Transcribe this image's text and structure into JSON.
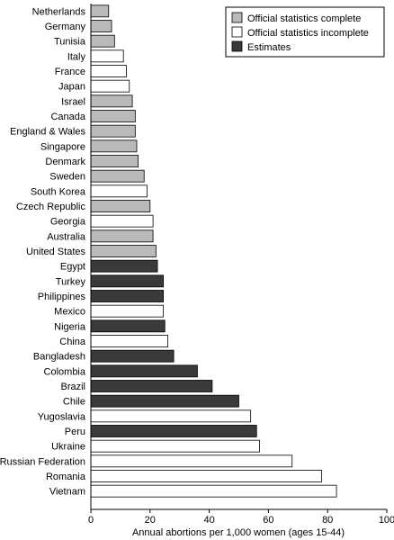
{
  "chart_data": {
    "type": "bar",
    "orientation": "horizontal",
    "title": "",
    "xlabel": "Annual abortions per 1,000 women (ages 15-44)",
    "ylabel": "",
    "xlim": [
      0,
      100
    ],
    "xticks": [
      0,
      20,
      40,
      60,
      80,
      100
    ],
    "grid": false,
    "legend_position": "top-right",
    "legend": [
      {
        "key": "complete",
        "label": "Official statistics complete",
        "color": "#b9b9b9"
      },
      {
        "key": "incomplete",
        "label": "Official statistics incomplete",
        "color": "#ffffff"
      },
      {
        "key": "estimates",
        "label": "Estimates",
        "color": "#3a3a3a"
      }
    ],
    "bars": [
      {
        "category": "Netherlands",
        "value": 6,
        "group": "complete"
      },
      {
        "category": "Germany",
        "value": 7,
        "group": "complete"
      },
      {
        "category": "Tunisia",
        "value": 8,
        "group": "complete"
      },
      {
        "category": "Italy",
        "value": 11,
        "group": "incomplete"
      },
      {
        "category": "France",
        "value": 12,
        "group": "incomplete"
      },
      {
        "category": "Japan",
        "value": 13,
        "group": "incomplete"
      },
      {
        "category": "Israel",
        "value": 14,
        "group": "complete"
      },
      {
        "category": "Canada",
        "value": 15,
        "group": "complete"
      },
      {
        "category": "England & Wales",
        "value": 15,
        "group": "complete"
      },
      {
        "category": "Singapore",
        "value": 15.5,
        "group": "complete"
      },
      {
        "category": "Denmark",
        "value": 16,
        "group": "complete"
      },
      {
        "category": "Sweden",
        "value": 18,
        "group": "complete"
      },
      {
        "category": "South Korea",
        "value": 19,
        "group": "incomplete"
      },
      {
        "category": "Czech Republic",
        "value": 20,
        "group": "complete"
      },
      {
        "category": "Georgia",
        "value": 21,
        "group": "incomplete"
      },
      {
        "category": "Australia",
        "value": 21,
        "group": "complete"
      },
      {
        "category": "United States",
        "value": 22,
        "group": "complete"
      },
      {
        "category": "Egypt",
        "value": 22.5,
        "group": "estimates"
      },
      {
        "category": "Turkey",
        "value": 24.5,
        "group": "estimates"
      },
      {
        "category": "Philippines",
        "value": 24.5,
        "group": "estimates"
      },
      {
        "category": "Mexico",
        "value": 24.5,
        "group": "incomplete"
      },
      {
        "category": "Nigeria",
        "value": 25,
        "group": "estimates"
      },
      {
        "category": "China",
        "value": 26,
        "group": "incomplete"
      },
      {
        "category": "Bangladesh",
        "value": 28,
        "group": "estimates"
      },
      {
        "category": "Colombia",
        "value": 36,
        "group": "estimates"
      },
      {
        "category": "Brazil",
        "value": 41,
        "group": "estimates"
      },
      {
        "category": "Chile",
        "value": 50,
        "group": "estimates"
      },
      {
        "category": "Yugoslavia",
        "value": 54,
        "group": "incomplete"
      },
      {
        "category": "Peru",
        "value": 56,
        "group": "estimates"
      },
      {
        "category": "Ukraine",
        "value": 57,
        "group": "incomplete"
      },
      {
        "category": "Russian Federation",
        "value": 68,
        "group": "incomplete"
      },
      {
        "category": "Romania",
        "value": 78,
        "group": "incomplete"
      },
      {
        "category": "Vietnam",
        "value": 83,
        "group": "incomplete"
      }
    ]
  }
}
